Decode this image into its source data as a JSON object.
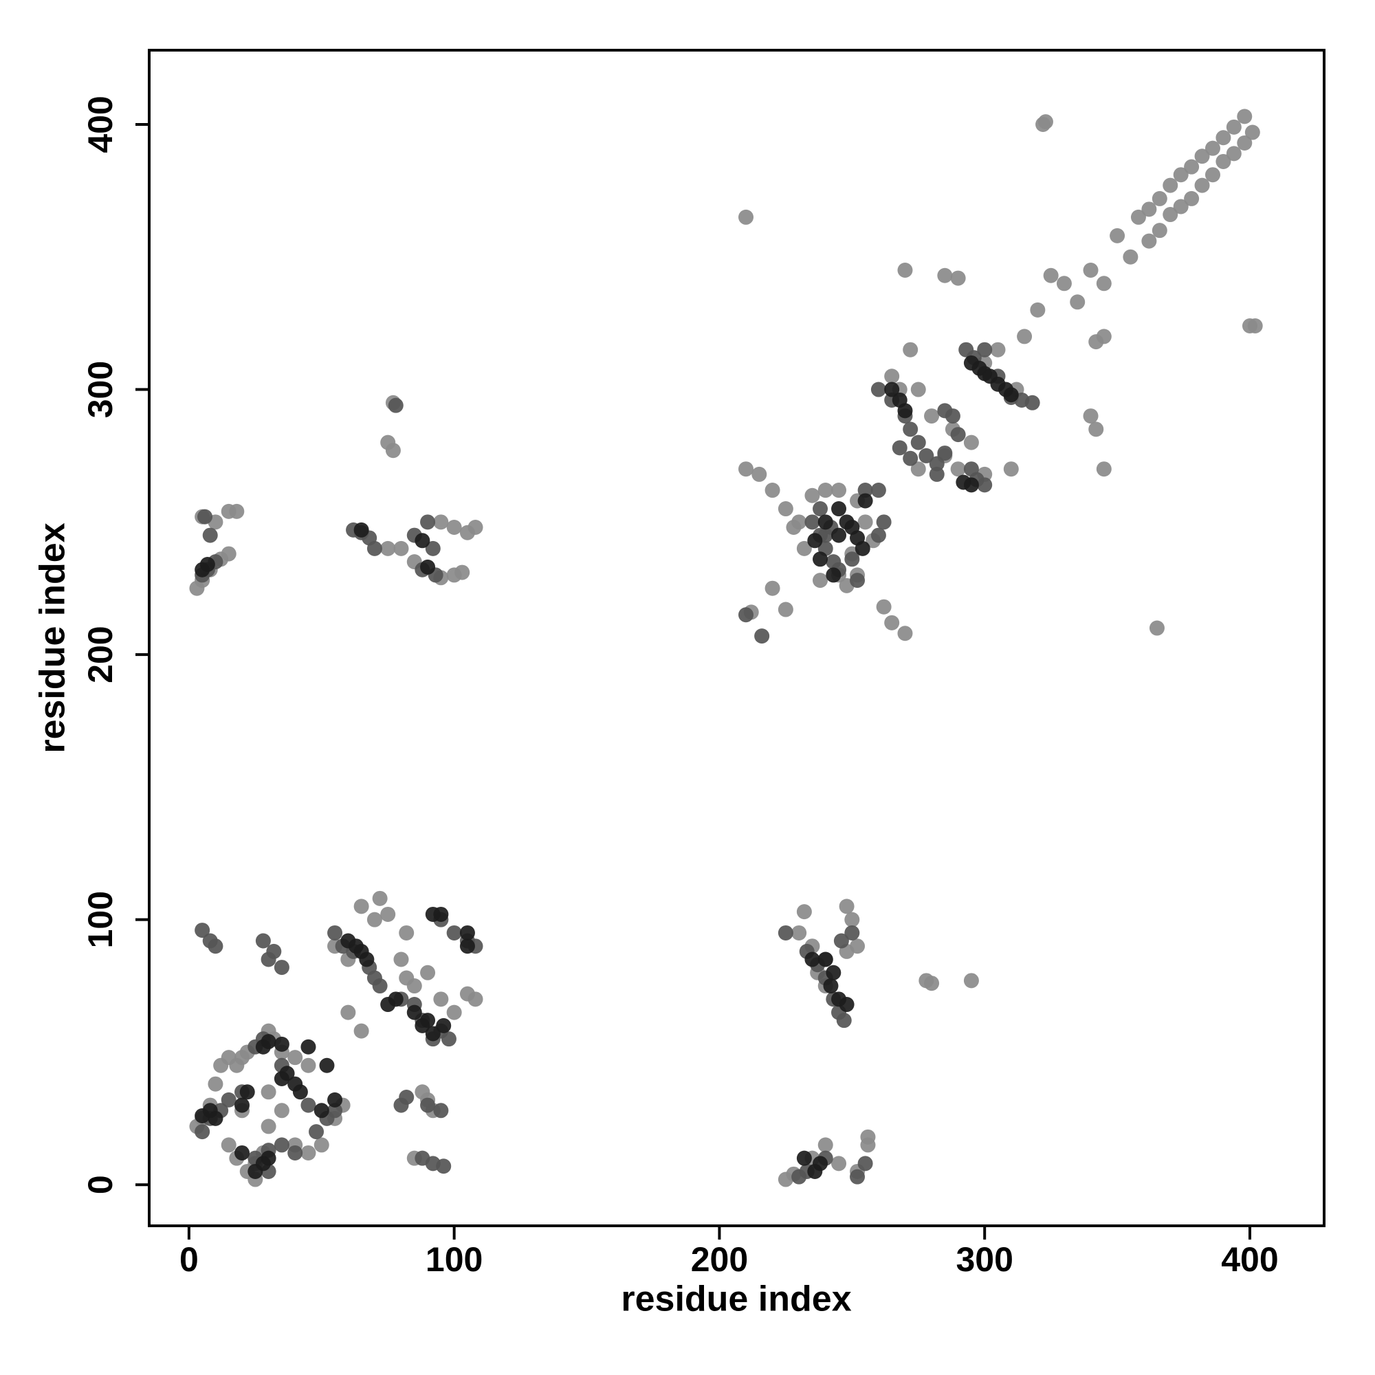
{
  "chart_data": {
    "type": "scatter",
    "xlabel": "residue index",
    "ylabel": "residue index",
    "xlim": [
      -15,
      428
    ],
    "ylim": [
      -15.5,
      428
    ],
    "xticks": [
      0,
      100,
      200,
      300,
      400
    ],
    "yticks": [
      0,
      100,
      200,
      300,
      400
    ],
    "grid": false,
    "series": [
      {
        "color": "#8a8a8a",
        "x": [
          358,
          362,
          366,
          370,
          374,
          378,
          382,
          386,
          390,
          394,
          398,
          362,
          366,
          370,
          374,
          378,
          382,
          386,
          390,
          394,
          398,
          401,
          350,
          355,
          345,
          340,
          335,
          330,
          325,
          322,
          323,
          402,
          400,
          365,
          210,
          320,
          342,
          345,
          340,
          342,
          345,
          270,
          285,
          290,
          272,
          265,
          275,
          280,
          288,
          285,
          295,
          290,
          300,
          310,
          275,
          268,
          305,
          315,
          312,
          300,
          210,
          215,
          220,
          225,
          230,
          235,
          240,
          245,
          252,
          255,
          258,
          250,
          245,
          238,
          232,
          228,
          262,
          265,
          270,
          220,
          225,
          212,
          252,
          248,
          3,
          5,
          8,
          12,
          15,
          10,
          15,
          18,
          5,
          75,
          77,
          77,
          95,
          100,
          105,
          108,
          100,
          95,
          103,
          80,
          85,
          75,
          230,
          232,
          235,
          240,
          248,
          250,
          252,
          248,
          237,
          240,
          225,
          228,
          235,
          240,
          245,
          252,
          256,
          256,
          278,
          280,
          295,
          3,
          5,
          8,
          10,
          12,
          15,
          18,
          20,
          22,
          15,
          18,
          22,
          25,
          30,
          32,
          35,
          40,
          45,
          30,
          20,
          35,
          40,
          45,
          50,
          55,
          58,
          60,
          55,
          60,
          65,
          70,
          72,
          75,
          80,
          82,
          90,
          85,
          95,
          100,
          105,
          108,
          82,
          85,
          88,
          90,
          92,
          65,
          30,
          28,
          25
        ],
        "values": [
          365,
          368,
          372,
          377,
          381,
          384,
          388,
          391,
          395,
          399,
          403,
          356,
          360,
          366,
          369,
          372,
          377,
          381,
          386,
          389,
          393,
          397,
          358,
          350,
          340,
          345,
          333,
          340,
          343,
          400,
          401,
          324,
          324,
          210,
          365,
          330,
          318,
          320,
          290,
          285,
          270,
          345,
          343,
          342,
          315,
          305,
          300,
          290,
          285,
          275,
          280,
          270,
          268,
          270,
          270,
          300,
          315,
          320,
          300,
          310,
          270,
          268,
          262,
          255,
          250,
          260,
          262,
          262,
          258,
          250,
          243,
          238,
          230,
          228,
          240,
          248,
          218,
          212,
          208,
          225,
          217,
          216,
          230,
          226,
          225,
          228,
          232,
          236,
          238,
          250,
          254,
          254,
          252,
          280,
          277,
          295,
          250,
          248,
          246,
          248,
          230,
          229,
          231,
          240,
          235,
          240,
          95,
          103,
          90,
          85,
          105,
          100,
          90,
          88,
          80,
          75,
          2,
          4,
          10,
          15,
          8,
          5,
          15,
          18,
          77,
          76,
          77,
          22,
          25,
          30,
          38,
          45,
          48,
          45,
          48,
          50,
          15,
          10,
          5,
          2,
          58,
          55,
          50,
          48,
          45,
          35,
          28,
          28,
          15,
          12,
          15,
          25,
          30,
          65,
          90,
          85,
          105,
          100,
          108,
          102,
          85,
          95,
          80,
          75,
          70,
          65,
          72,
          70,
          78,
          10,
          35,
          32,
          28,
          58,
          22,
          12,
          8
        ]
      },
      {
        "color": "#555555",
        "x": [
          260,
          265,
          270,
          272,
          275,
          278,
          282,
          285,
          288,
          290,
          295,
          297,
          300,
          310,
          314,
          318,
          305,
          300,
          293,
          296,
          268,
          272,
          282,
          285,
          235,
          238,
          240,
          243,
          245,
          250,
          252,
          260,
          262,
          238,
          255,
          260,
          242,
          216,
          210,
          225,
          233,
          237,
          240,
          243,
          245,
          247,
          250,
          246,
          233,
          230,
          240,
          252,
          255,
          240,
          5,
          7,
          10,
          8,
          6,
          62,
          65,
          68,
          70,
          85,
          90,
          92,
          88,
          93,
          78,
          5,
          8,
          10,
          28,
          30,
          32,
          35,
          55,
          58,
          62,
          68,
          70,
          72,
          80,
          85,
          88,
          92,
          95,
          98,
          95,
          100,
          105,
          108,
          80,
          82,
          90,
          95,
          88,
          92,
          96,
          5,
          8,
          12,
          15,
          20,
          25,
          28,
          30,
          35,
          40,
          48,
          52,
          55,
          45,
          35,
          30,
          25
        ],
        "values": [
          300,
          296,
          290,
          285,
          280,
          275,
          268,
          292,
          290,
          283,
          270,
          266,
          264,
          297,
          296,
          295,
          305,
          315,
          315,
          312,
          278,
          274,
          272,
          276,
          250,
          245,
          240,
          235,
          232,
          236,
          228,
          245,
          250,
          255,
          262,
          262,
          248,
          207,
          215,
          95,
          88,
          83,
          78,
          70,
          65,
          62,
          95,
          92,
          5,
          3,
          10,
          3,
          8,
          245,
          230,
          232,
          235,
          245,
          252,
          247,
          246,
          244,
          240,
          245,
          250,
          240,
          232,
          230,
          294,
          96,
          92,
          90,
          92,
          85,
          88,
          82,
          95,
          90,
          88,
          82,
          78,
          75,
          70,
          68,
          62,
          55,
          58,
          55,
          100,
          95,
          92,
          90,
          30,
          33,
          30,
          28,
          10,
          8,
          7,
          20,
          25,
          28,
          32,
          35,
          52,
          55,
          13,
          15,
          12,
          20,
          25,
          28,
          30,
          45,
          5,
          10
        ]
      },
      {
        "color": "#1c1c1c",
        "x": [
          295,
          298,
          300,
          302,
          308,
          310,
          265,
          268,
          270,
          292,
          295,
          240,
          245,
          248,
          250,
          252,
          254,
          236,
          238,
          243,
          255,
          245,
          240,
          243,
          242,
          245,
          248,
          235,
          236,
          238,
          25,
          28,
          30,
          20,
          22,
          10,
          8,
          5,
          28,
          30,
          35,
          45,
          40,
          42,
          52,
          55,
          50,
          60,
          63,
          65,
          67,
          75,
          78,
          85,
          88,
          90,
          92,
          96,
          92,
          95,
          105,
          105,
          37,
          35,
          20,
          5,
          7,
          65,
          88,
          90,
          232,
          305
        ],
        "values": [
          310,
          308,
          306,
          305,
          300,
          298,
          300,
          296,
          292,
          265,
          264,
          250,
          245,
          250,
          248,
          244,
          240,
          243,
          236,
          230,
          258,
          255,
          85,
          80,
          75,
          70,
          68,
          85,
          5,
          8,
          5,
          8,
          10,
          30,
          35,
          25,
          28,
          26,
          52,
          54,
          53,
          52,
          38,
          35,
          45,
          32,
          28,
          92,
          90,
          88,
          85,
          68,
          70,
          65,
          60,
          62,
          57,
          60,
          102,
          102,
          95,
          90,
          42,
          40,
          12,
          232,
          234,
          247,
          243,
          233,
          10,
          302
        ]
      }
    ]
  }
}
